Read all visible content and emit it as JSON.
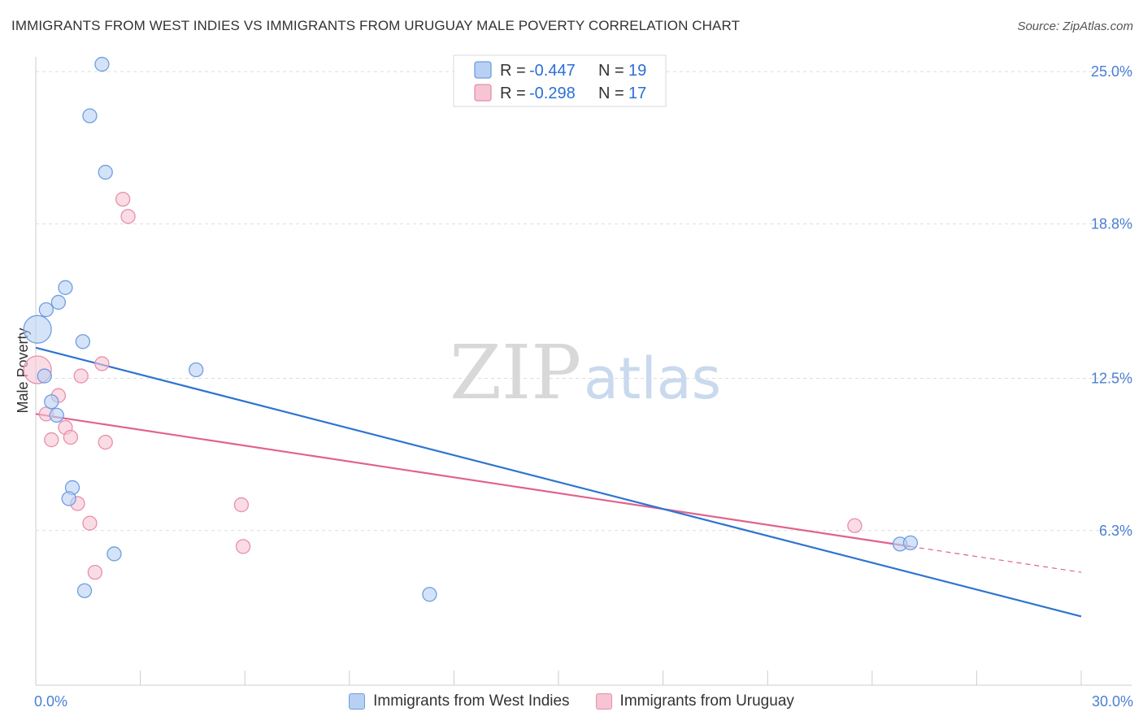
{
  "title": "IMMIGRANTS FROM WEST INDIES VS IMMIGRANTS FROM URUGUAY MALE POVERTY CORRELATION CHART",
  "source": "Source: ZipAtlas.com",
  "watermark": {
    "zip": "ZIP",
    "atlas": "atlas"
  },
  "colors": {
    "blue_fill": "#b8d0f3",
    "blue_stroke": "#6e9ee0",
    "blue_line": "#2f74d0",
    "pink_fill": "#f6c4d3",
    "pink_stroke": "#e88fab",
    "pink_line": "#e0628e",
    "grid": "#dddddd",
    "axis_text": "#4a7fd4"
  },
  "chart_data": {
    "type": "scatter",
    "title": "IMMIGRANTS FROM WEST INDIES VS IMMIGRANTS FROM URUGUAY MALE POVERTY CORRELATION CHART",
    "xlabel": "",
    "ylabel": "Male Poverty",
    "xlim": [
      0,
      30
    ],
    "ylim": [
      0,
      25.6
    ],
    "x_tick_labels": [
      {
        "value": 0,
        "label": "0.0%"
      },
      {
        "value": 30,
        "label": "30.0%"
      }
    ],
    "y_ticks": [
      {
        "value": 6.3,
        "label": "6.3%"
      },
      {
        "value": 12.5,
        "label": "12.5%"
      },
      {
        "value": 18.8,
        "label": "18.8%"
      },
      {
        "value": 25.0,
        "label": "25.0%"
      }
    ],
    "legend": [
      {
        "r_label": "R = ",
        "r_value": "-0.447",
        "n_label": "N = ",
        "n_value": "19"
      },
      {
        "r_label": "R = ",
        "r_value": "-0.298",
        "n_label": "N = ",
        "n_value": "17"
      }
    ],
    "series": [
      {
        "name": "Immigrants from West Indies",
        "color": "blue",
        "points": [
          {
            "x": 1.9,
            "y": 25.3,
            "size": 1
          },
          {
            "x": 1.55,
            "y": 23.2,
            "size": 1
          },
          {
            "x": 2.0,
            "y": 20.9,
            "size": 1
          },
          {
            "x": 0.85,
            "y": 16.2,
            "size": 1
          },
          {
            "x": 0.3,
            "y": 15.3,
            "size": 1
          },
          {
            "x": 0.65,
            "y": 15.6,
            "size": 1
          },
          {
            "x": 0.05,
            "y": 14.5,
            "size": 2
          },
          {
            "x": 1.35,
            "y": 14.0,
            "size": 1
          },
          {
            "x": 4.6,
            "y": 12.85,
            "size": 1
          },
          {
            "x": 0.25,
            "y": 12.6,
            "size": 1
          },
          {
            "x": 0.45,
            "y": 11.55,
            "size": 1
          },
          {
            "x": 0.6,
            "y": 11.0,
            "size": 1
          },
          {
            "x": 1.05,
            "y": 8.05,
            "size": 1
          },
          {
            "x": 0.95,
            "y": 7.6,
            "size": 1
          },
          {
            "x": 2.25,
            "y": 5.35,
            "size": 1
          },
          {
            "x": 1.4,
            "y": 3.85,
            "size": 1
          },
          {
            "x": 11.3,
            "y": 3.7,
            "size": 1
          },
          {
            "x": 24.8,
            "y": 5.75,
            "size": 1
          },
          {
            "x": 25.1,
            "y": 5.8,
            "size": 1
          }
        ],
        "trend": {
          "x1": 0,
          "y1": 13.75,
          "x2": 30,
          "y2": 2.8
        }
      },
      {
        "name": "Immigrants from Uruguay",
        "color": "pink",
        "points": [
          {
            "x": 2.5,
            "y": 19.8,
            "size": 1
          },
          {
            "x": 2.65,
            "y": 19.1,
            "size": 1
          },
          {
            "x": 0.05,
            "y": 12.85,
            "size": 2
          },
          {
            "x": 1.9,
            "y": 13.1,
            "size": 1
          },
          {
            "x": 1.3,
            "y": 12.6,
            "size": 1
          },
          {
            "x": 0.65,
            "y": 11.8,
            "size": 1
          },
          {
            "x": 0.3,
            "y": 11.05,
            "size": 1
          },
          {
            "x": 0.85,
            "y": 10.5,
            "size": 1
          },
          {
            "x": 0.45,
            "y": 10.0,
            "size": 1
          },
          {
            "x": 1.0,
            "y": 10.1,
            "size": 1
          },
          {
            "x": 2.0,
            "y": 9.9,
            "size": 1
          },
          {
            "x": 1.2,
            "y": 7.4,
            "size": 1
          },
          {
            "x": 5.9,
            "y": 7.35,
            "size": 1
          },
          {
            "x": 1.55,
            "y": 6.6,
            "size": 1
          },
          {
            "x": 5.95,
            "y": 5.65,
            "size": 1
          },
          {
            "x": 1.7,
            "y": 4.6,
            "size": 1
          },
          {
            "x": 23.5,
            "y": 6.5,
            "size": 1
          }
        ],
        "trend": {
          "x1": 0,
          "y1": 11.05,
          "x2": 25.1,
          "y2": 5.65
        },
        "trend_dashed": {
          "x1": 25.1,
          "y1": 5.65,
          "x2": 30,
          "y2": 4.6
        }
      }
    ]
  }
}
